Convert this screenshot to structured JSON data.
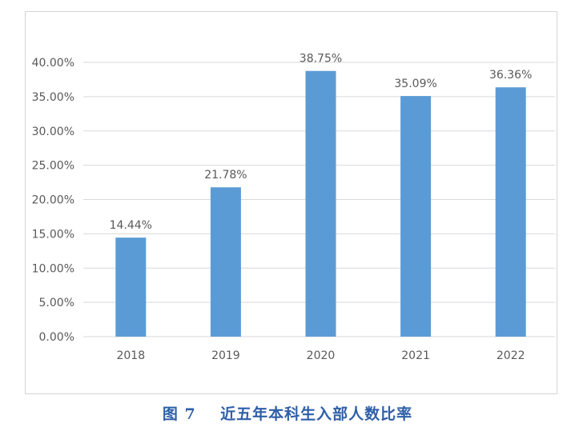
{
  "caption": "图 7    近五年本科生入部人数比率",
  "colors": {
    "bar": "#5b9bd5",
    "grid": "#d9d9d9",
    "axis_text": "#595959",
    "caption": "#2e5fa8"
  },
  "chart_data": {
    "type": "bar",
    "title": "",
    "xlabel": "",
    "ylabel": "",
    "categories": [
      "2018",
      "2019",
      "2020",
      "2021",
      "2022"
    ],
    "values": [
      14.44,
      21.78,
      38.75,
      35.09,
      36.36
    ],
    "data_labels": [
      "14.44%",
      "21.78%",
      "38.75%",
      "35.09%",
      "36.36%"
    ],
    "ylim": [
      0,
      40
    ],
    "y_ticks": [
      0,
      5,
      10,
      15,
      20,
      25,
      30,
      35,
      40
    ],
    "y_tick_labels": [
      "0.00%",
      "5.00%",
      "10.00%",
      "15.00%",
      "20.00%",
      "25.00%",
      "30.00%",
      "35.00%",
      "40.00%"
    ],
    "grid": true,
    "legend": false
  }
}
